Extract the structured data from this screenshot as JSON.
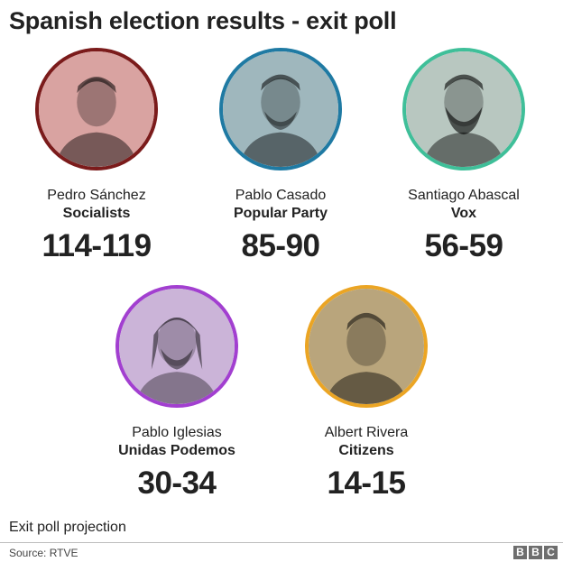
{
  "title": "Spanish election results - exit poll",
  "candidates": [
    {
      "name": "Pedro Sánchez",
      "party": "Socialists",
      "seats": "114-119",
      "ring_color": "#7b1b1b",
      "tint": "#d9a3a1"
    },
    {
      "name": "Pablo Casado",
      "party": "Popular Party",
      "seats": "85-90",
      "ring_color": "#1f7aa3",
      "tint": "#9fb7bd"
    },
    {
      "name": "Santiago Abascal",
      "party": "Vox",
      "seats": "56-59",
      "ring_color": "#3fbf99",
      "tint": "#b8c7c0"
    },
    {
      "name": "Pablo Iglesias",
      "party": "Unidas Podemos",
      "seats": "30-34",
      "ring_color": "#a23fd0",
      "tint": "#cbb4d8"
    },
    {
      "name": "Albert Rivera",
      "party": "Citizens",
      "seats": "14-15",
      "ring_color": "#eba524",
      "tint": "#b9a57c"
    }
  ],
  "footnote": "Exit poll projection",
  "source": "Source: RTVE",
  "logo": [
    "B",
    "B",
    "C"
  ]
}
